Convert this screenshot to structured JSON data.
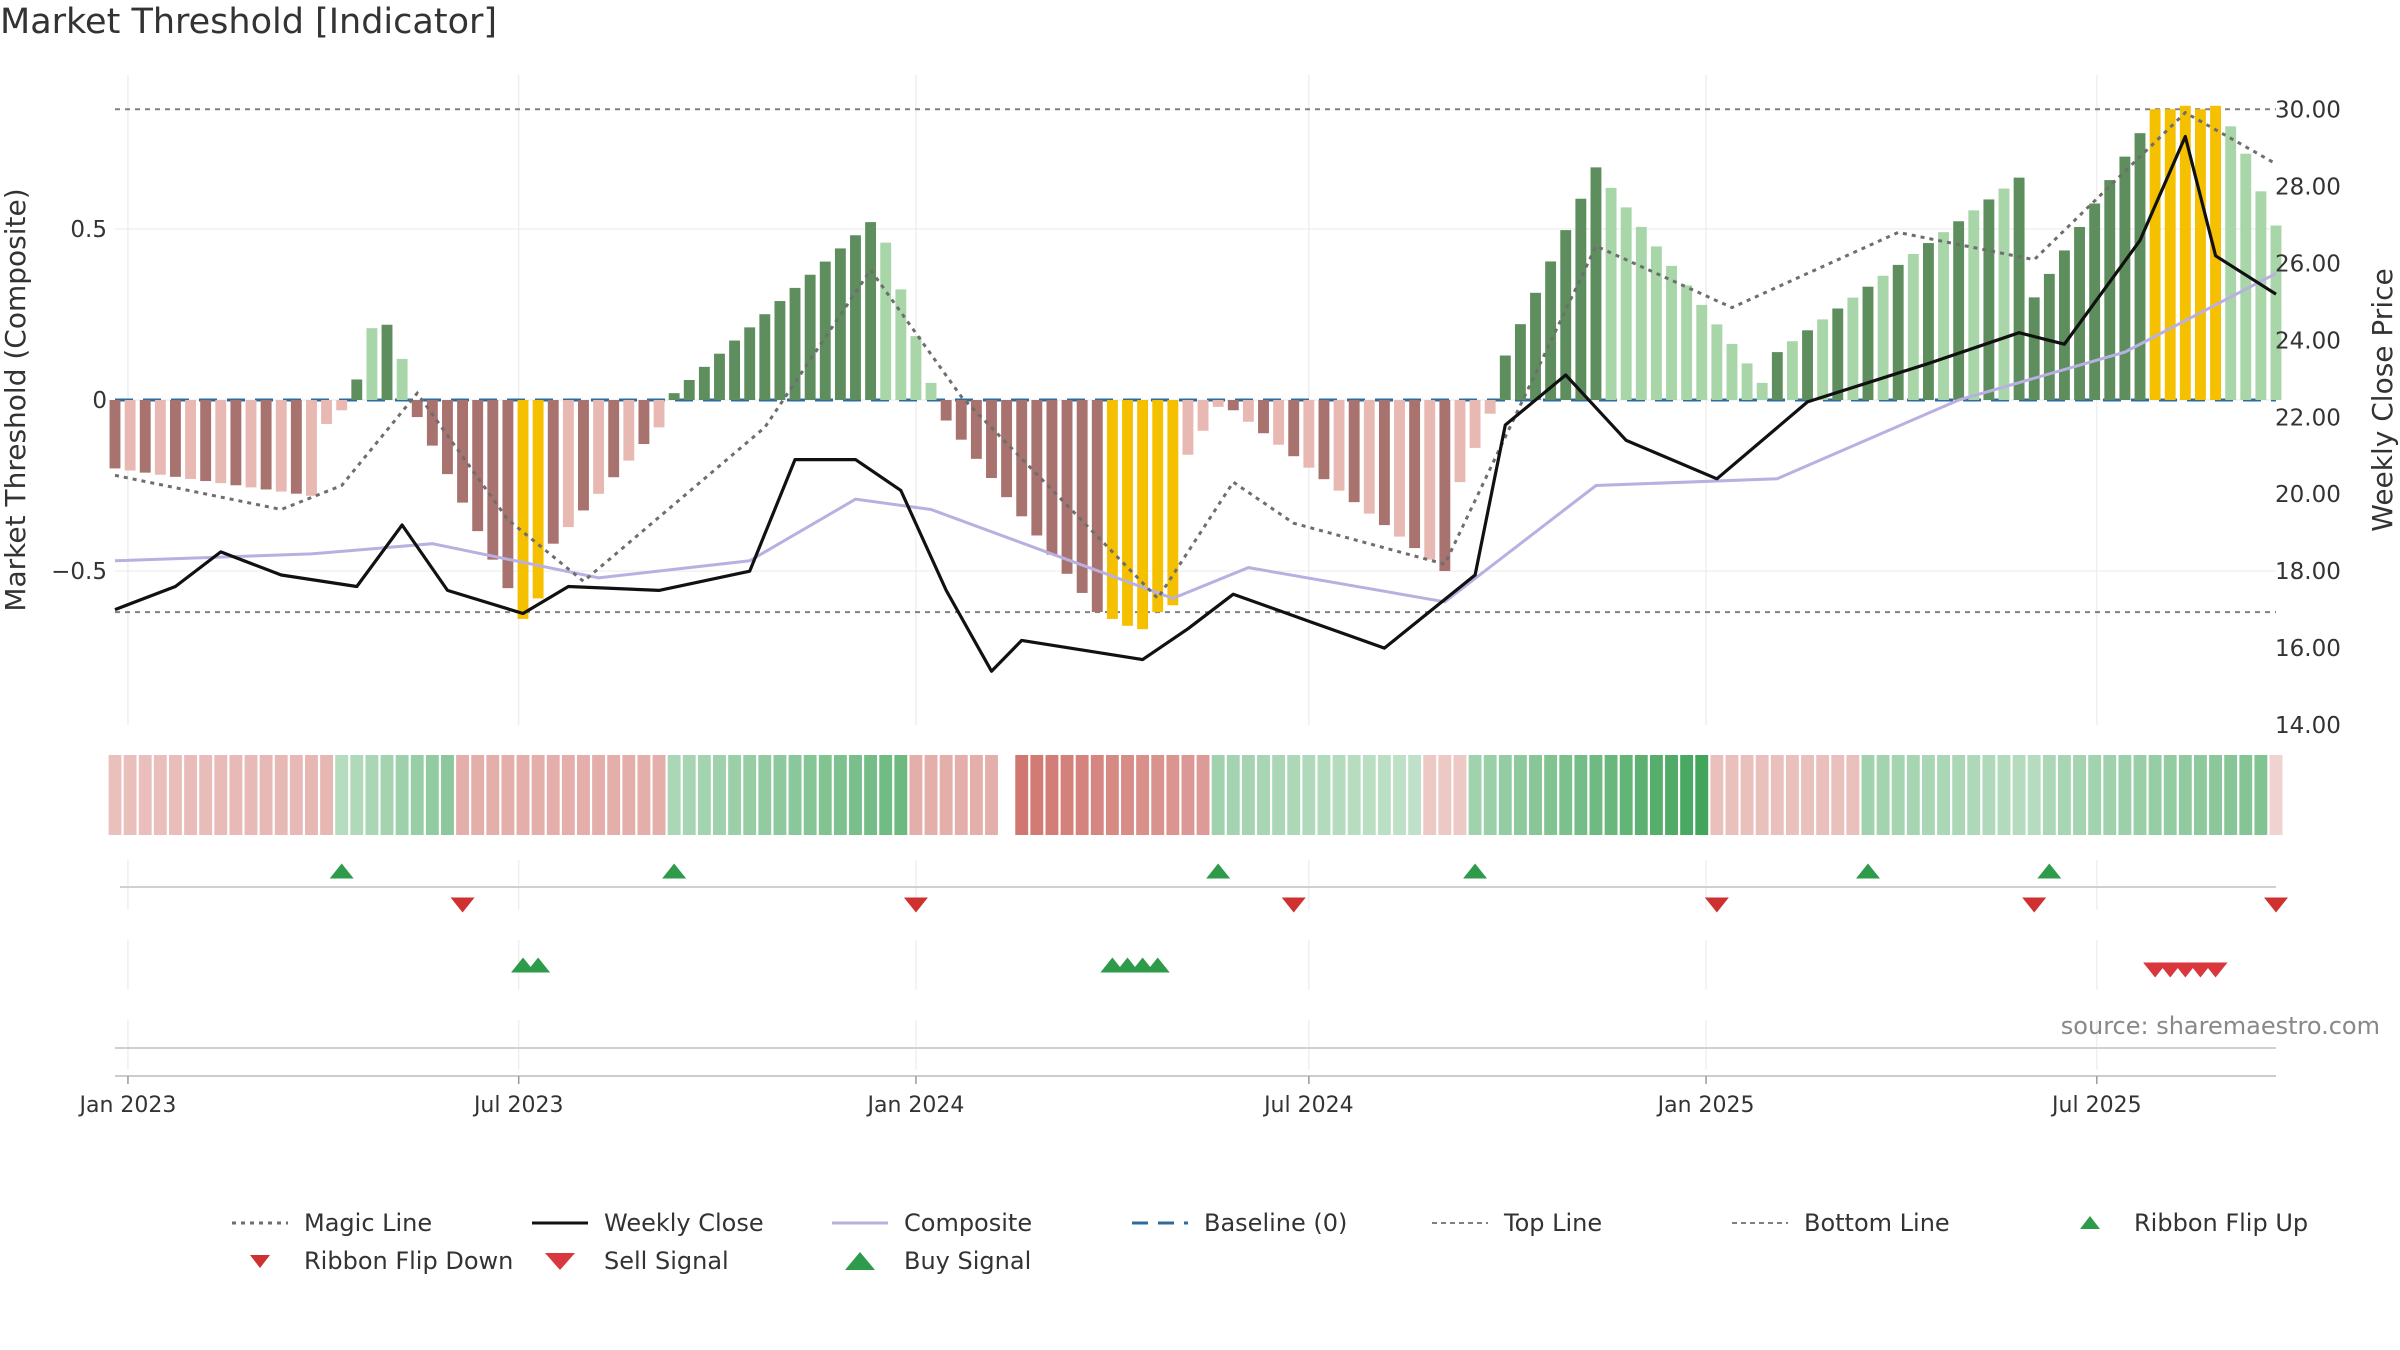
{
  "title": "Market Threshold [Indicator]",
  "source": "source: sharemaestro.com",
  "colors": {
    "magic_line": "#6e6e6e",
    "weekly_close": "#111111",
    "composite": "#b8b0e0",
    "baseline": "#2e6b9c",
    "guide_line": "#808080",
    "strong_up": "#5e8e5e",
    "weak_up": "#a8d6a8",
    "strong_down": "#a8726e",
    "weak_down": "#e8b8b2",
    "extreme": "#f5c000",
    "buy": "#2e9b4a",
    "sell": "#d9363e",
    "flip_up": "#2e9b4a",
    "flip_down": "#cf3030"
  },
  "chart_data": {
    "type": "bar",
    "title": "Market Threshold [Indicator]",
    "x_start": "2022-12-26",
    "x_end": "2025-09-22",
    "x_tick_labels": [
      "Jan 2023",
      "Jul 2023",
      "Jan 2024",
      "Jul 2024",
      "Jan 2025",
      "Jul 2025"
    ],
    "x_tick_dates": [
      "2023-01-01",
      "2023-07-01",
      "2024-01-01",
      "2024-07-01",
      "2025-01-01",
      "2025-07-01"
    ],
    "y_left": {
      "label": "Market Threshold (Composite)",
      "ticks": [
        0.5,
        0,
        -0.5
      ],
      "tick_labels": [
        "0.5",
        "0",
        "−0.5"
      ],
      "range": [
        -0.95,
        0.95
      ]
    },
    "y_right": {
      "label": "Weekly Close Price",
      "ticks": [
        14,
        16,
        18,
        20,
        22,
        24,
        26,
        28,
        30
      ],
      "tick_labels": [
        "14.00",
        "16.00",
        "18.00",
        "20.00",
        "22.00",
        "24.00",
        "26.00",
        "28.00",
        "30.00"
      ],
      "range": [
        14,
        30.9
      ]
    },
    "top_line": 0.85,
    "bottom_line": -0.62,
    "baseline": 0,
    "grid": true,
    "bar_segments": [
      {
        "from": "2022-12-26",
        "to": "2023-03-27",
        "start": -0.2,
        "end": -0.28,
        "style": "mixed_down"
      },
      {
        "from": "2023-04-03",
        "to": "2023-04-10",
        "start": -0.07,
        "end": -0.03,
        "style": "weak_down"
      },
      {
        "from": "2023-04-17",
        "to": "2023-05-08",
        "values": [
          0.06,
          0.21,
          0.22,
          0.12
        ],
        "style": "mixed_up"
      },
      {
        "from": "2023-05-15",
        "to": "2023-06-26",
        "start": -0.05,
        "end": -0.55,
        "style": "strong_down"
      },
      {
        "from": "2023-07-03",
        "to": "2023-07-10",
        "values": [
          -0.64,
          -0.58
        ],
        "style": "extreme"
      },
      {
        "from": "2023-07-17",
        "to": "2023-09-04",
        "start": -0.42,
        "end": -0.08,
        "style": "mixed_down"
      },
      {
        "from": "2023-09-11",
        "to": "2023-12-11",
        "start": 0.02,
        "end": 0.52,
        "style": "strong_up"
      },
      {
        "from": "2023-12-18",
        "to": "2024-01-08",
        "start": 0.46,
        "end": 0.05,
        "style": "weak_up"
      },
      {
        "from": "2024-01-15",
        "to": "2024-03-25",
        "start": -0.06,
        "end": -0.62,
        "style": "strong_down"
      },
      {
        "from": "2024-04-01",
        "to": "2024-04-29",
        "values": [
          -0.64,
          -0.66,
          -0.67,
          -0.62,
          -0.6
        ],
        "style": "extreme"
      },
      {
        "from": "2024-05-06",
        "to": "2024-05-20",
        "start": -0.16,
        "end": -0.02,
        "style": "weak_down"
      },
      {
        "from": "2024-05-27",
        "to": "2024-09-02",
        "start": -0.03,
        "end": -0.5,
        "style": "mixed_down"
      },
      {
        "from": "2024-09-09",
        "to": "2024-09-23",
        "start": -0.24,
        "end": -0.04,
        "style": "weak_down"
      },
      {
        "from": "2024-09-30",
        "to": "2024-11-11",
        "start": 0.13,
        "end": 0.68,
        "style": "strong_up"
      },
      {
        "from": "2024-11-18",
        "to": "2025-01-27",
        "start": 0.62,
        "end": 0.05,
        "style": "weak_up"
      },
      {
        "from": "2025-02-03",
        "to": "2025-05-26",
        "start": 0.14,
        "end": 0.65,
        "style": "mixed_up"
      },
      {
        "from": "2025-06-02",
        "to": "2025-07-21",
        "start": 0.3,
        "end": 0.78,
        "style": "strong_up"
      },
      {
        "from": "2025-07-28",
        "to": "2025-08-25",
        "values": [
          0.85,
          0.85,
          0.86,
          0.85,
          0.86
        ],
        "style": "extreme"
      },
      {
        "from": "2025-09-01",
        "to": "2025-09-22",
        "values": [
          0.8,
          0.72,
          0.61,
          0.51
        ],
        "style": "weak_up"
      }
    ],
    "weekly_close": {
      "name": "Weekly Close",
      "points": [
        [
          "2022-12-26",
          17.0
        ],
        [
          "2023-01-23",
          17.6
        ],
        [
          "2023-02-13",
          18.5
        ],
        [
          "2023-03-13",
          17.9
        ],
        [
          "2023-04-17",
          17.6
        ],
        [
          "2023-05-08",
          19.2
        ],
        [
          "2023-05-29",
          17.5
        ],
        [
          "2023-07-03",
          16.9
        ],
        [
          "2023-07-24",
          17.6
        ],
        [
          "2023-09-04",
          17.5
        ],
        [
          "2023-10-16",
          18.0
        ],
        [
          "2023-11-06",
          20.9
        ],
        [
          "2023-12-04",
          20.9
        ],
        [
          "2023-12-25",
          20.1
        ],
        [
          "2024-01-15",
          17.5
        ],
        [
          "2024-02-05",
          15.4
        ],
        [
          "2024-02-19",
          16.2
        ],
        [
          "2024-04-15",
          15.7
        ],
        [
          "2024-05-06",
          16.5
        ],
        [
          "2024-05-27",
          17.4
        ],
        [
          "2024-07-01",
          16.7
        ],
        [
          "2024-08-05",
          16.0
        ],
        [
          "2024-09-16",
          17.9
        ],
        [
          "2024-09-30",
          21.8
        ],
        [
          "2024-10-28",
          23.1
        ],
        [
          "2024-11-25",
          21.4
        ],
        [
          "2025-01-06",
          20.4
        ],
        [
          "2025-02-17",
          22.4
        ],
        [
          "2025-04-14",
          23.4
        ],
        [
          "2025-05-26",
          24.2
        ],
        [
          "2025-06-16",
          23.9
        ],
        [
          "2025-07-21",
          26.6
        ],
        [
          "2025-08-11",
          29.3
        ],
        [
          "2025-08-25",
          26.2
        ],
        [
          "2025-09-22",
          25.2
        ]
      ]
    },
    "composite": {
      "name": "Composite",
      "points": [
        [
          "2022-12-26",
          -0.47
        ],
        [
          "2023-03-27",
          -0.45
        ],
        [
          "2023-05-22",
          -0.42
        ],
        [
          "2023-08-07",
          -0.52
        ],
        [
          "2023-10-16",
          -0.47
        ],
        [
          "2023-12-04",
          -0.29
        ],
        [
          "2024-01-08",
          -0.32
        ],
        [
          "2024-04-29",
          -0.58
        ],
        [
          "2024-06-03",
          -0.49
        ],
        [
          "2024-09-02",
          -0.59
        ],
        [
          "2024-11-11",
          -0.25
        ],
        [
          "2025-02-03",
          -0.23
        ],
        [
          "2025-04-28",
          0.0
        ],
        [
          "2025-07-14",
          0.14
        ],
        [
          "2025-09-22",
          0.37
        ]
      ]
    },
    "magic_line": {
      "name": "Magic Line",
      "points": [
        [
          "2022-12-26",
          -0.22
        ],
        [
          "2023-03-13",
          -0.32
        ],
        [
          "2023-04-10",
          -0.25
        ],
        [
          "2023-05-15",
          0.02
        ],
        [
          "2023-06-26",
          -0.35
        ],
        [
          "2023-07-31",
          -0.53
        ],
        [
          "2023-10-23",
          -0.08
        ],
        [
          "2023-12-11",
          0.38
        ],
        [
          "2024-01-22",
          0.01
        ],
        [
          "2024-04-22",
          -0.58
        ],
        [
          "2024-05-27",
          -0.24
        ],
        [
          "2024-06-24",
          -0.36
        ],
        [
          "2024-09-02",
          -0.48
        ],
        [
          "2024-11-11",
          0.45
        ],
        [
          "2025-01-13",
          0.27
        ],
        [
          "2025-03-31",
          0.49
        ],
        [
          "2025-06-02",
          0.41
        ],
        [
          "2025-08-11",
          0.84
        ],
        [
          "2025-09-22",
          0.69
        ]
      ]
    },
    "ribbon": {
      "segments": [
        {
          "from": "2022-12-26",
          "to": "2023-04-03",
          "tone": "down",
          "strength": [
            0.35,
            0.4
          ]
        },
        {
          "from": "2023-04-10",
          "to": "2023-05-29",
          "tone": "up",
          "strength": [
            0.35,
            0.55
          ]
        },
        {
          "from": "2023-06-05",
          "to": "2023-09-04",
          "tone": "down",
          "strength": [
            0.45,
            0.45
          ]
        },
        {
          "from": "2023-09-11",
          "to": "2023-12-25",
          "tone": "up",
          "strength": [
            0.4,
            0.7
          ]
        },
        {
          "from": "2024-01-01",
          "to": "2024-02-05",
          "tone": "down",
          "strength": [
            0.45,
            0.45
          ]
        },
        {
          "from": "2024-02-19",
          "to": "2024-05-13",
          "tone": "down",
          "strength": [
            0.75,
            0.55
          ]
        },
        {
          "from": "2024-05-20",
          "to": "2024-08-19",
          "tone": "up",
          "strength": [
            0.45,
            0.3
          ]
        },
        {
          "from": "2024-08-26",
          "to": "2024-09-09",
          "tone": "down",
          "strength": [
            0.3,
            0.3
          ]
        },
        {
          "from": "2024-09-16",
          "to": "2024-12-30",
          "tone": "up",
          "strength": [
            0.45,
            0.9
          ]
        },
        {
          "from": "2025-01-06",
          "to": "2025-03-10",
          "tone": "down",
          "strength": [
            0.35,
            0.35
          ]
        },
        {
          "from": "2025-03-17",
          "to": "2025-06-02",
          "tone": "up",
          "strength": [
            0.45,
            0.35
          ]
        },
        {
          "from": "2025-06-09",
          "to": "2025-09-15",
          "tone": "up",
          "strength": [
            0.4,
            0.6
          ]
        },
        {
          "from": "2025-09-22",
          "to": "2025-09-22",
          "tone": "down",
          "strength": [
            0.25,
            0.25
          ]
        }
      ]
    },
    "ribbon_flip_up": [
      "2023-04-10",
      "2023-09-11",
      "2024-05-20",
      "2024-09-16",
      "2025-03-17",
      "2025-06-09"
    ],
    "ribbon_flip_down": [
      "2023-06-05",
      "2024-01-01",
      "2024-06-24",
      "2025-01-06",
      "2025-06-02",
      "2025-09-22"
    ],
    "buy_signals": [
      "2023-07-03",
      "2023-07-10",
      "2024-04-01",
      "2024-04-08",
      "2024-04-15",
      "2024-04-22"
    ],
    "sell_signals": [
      "2025-07-28",
      "2025-08-04",
      "2025-08-11",
      "2025-08-18",
      "2025-08-25"
    ]
  },
  "legend": [
    {
      "label": "Magic Line",
      "key": "magic_line"
    },
    {
      "label": "Weekly Close",
      "key": "weekly_close"
    },
    {
      "label": "Composite",
      "key": "composite"
    },
    {
      "label": "Baseline (0)",
      "key": "baseline"
    },
    {
      "label": "Top Line",
      "key": "top_line"
    },
    {
      "label": "Bottom Line",
      "key": "bottom_line"
    },
    {
      "label": "Ribbon Flip Up",
      "key": "ribbon_flip_up"
    },
    {
      "label": "Ribbon Flip Down",
      "key": "ribbon_flip_down"
    },
    {
      "label": "Sell Signal",
      "key": "sell_signal"
    },
    {
      "label": "Buy Signal",
      "key": "buy_signal"
    }
  ]
}
